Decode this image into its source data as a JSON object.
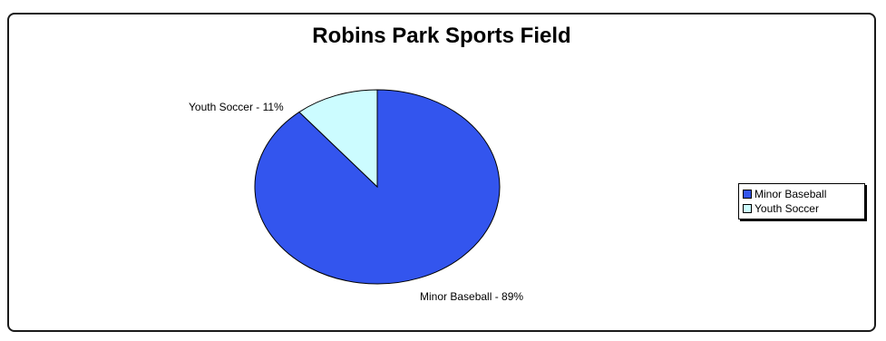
{
  "chart_data": {
    "type": "pie",
    "title": "Robins Park Sports Field",
    "slices": [
      {
        "name": "Minor Baseball",
        "value": 89,
        "label": "Minor Baseball - 89%",
        "color": "#3355ee"
      },
      {
        "name": "Youth Soccer",
        "value": 11,
        "label": "Youth Soccer - 11%",
        "color": "#ccfcff"
      }
    ],
    "legend": {
      "position": "right",
      "items": [
        "Minor Baseball",
        "Youth Soccer"
      ]
    }
  }
}
